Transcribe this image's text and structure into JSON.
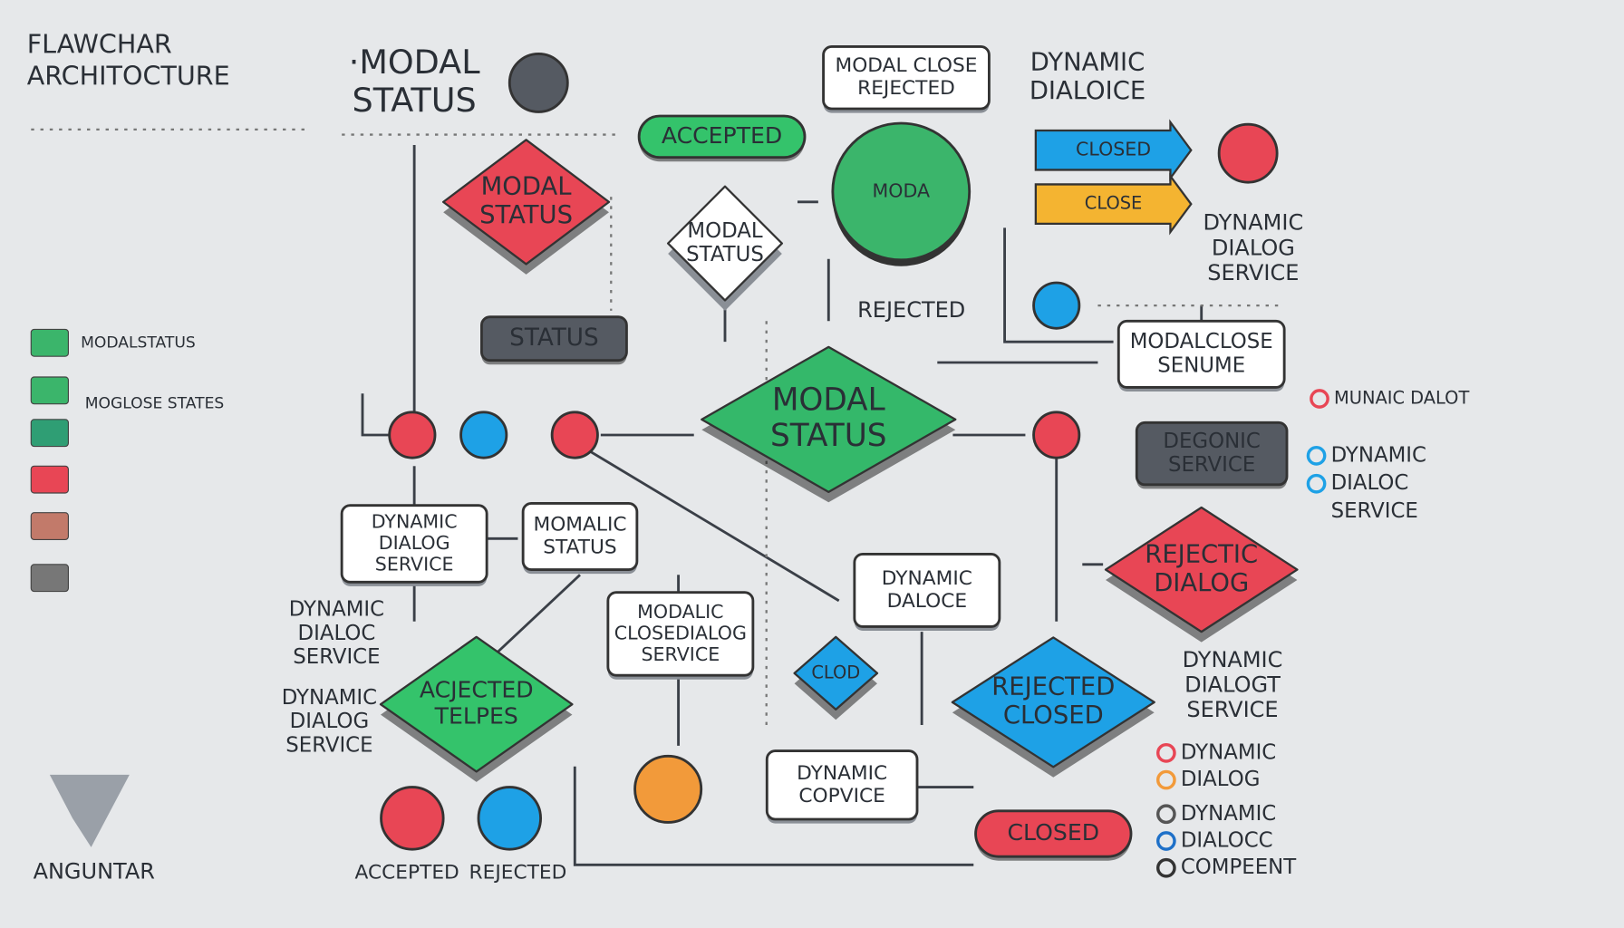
{
  "header": {
    "title": [
      "FLAWCHAR",
      "ARCHITOCTURE"
    ]
  },
  "legend_left": [
    "MODALSTATUS",
    "MOGLOSE STATES"
  ],
  "nodes": [
    {
      "lines": [
        "·MODAL",
        "STATUS"
      ]
    },
    {
      "lines": [
        "MODAL CLOSE",
        "REJECTED"
      ]
    },
    {
      "lines": [
        "DYNAMIC",
        "DIALOICE"
      ]
    },
    {
      "lines": [
        "ACCEPTED"
      ]
    },
    {
      "lines": [
        "MODAL",
        "STATUS"
      ]
    },
    {
      "lines": [
        "MODAL",
        "STATUS"
      ]
    },
    {
      "lines": [
        "MODA"
      ]
    },
    {
      "lines": [
        "CLOSED"
      ]
    },
    {
      "lines": [
        "CLOSE"
      ]
    },
    {
      "lines": [
        "DYNAMIC",
        "DIALOG",
        "SERVICE"
      ]
    },
    {
      "lines": [
        "STATUS"
      ]
    },
    {
      "lines": [
        "REJECTED"
      ]
    },
    {
      "lines": [
        "MODALCLOSE",
        "SENUME"
      ]
    },
    {
      "lines": [
        "MODAL",
        "STATUS"
      ]
    },
    {
      "lines": [
        "DEGONIC",
        "SERVICE"
      ]
    },
    {
      "lines": [
        "DYNAMIC",
        "DIALOG",
        "SERVICE"
      ]
    },
    {
      "lines": [
        "MOMALIC",
        "STATUS"
      ]
    },
    {
      "lines": [
        "DYNAMIC",
        "DALOCE"
      ]
    },
    {
      "lines": [
        "REJECTIC",
        "DIALOG"
      ]
    },
    {
      "lines": [
        "DYNAMIC",
        "DIALOC",
        "SERVICE"
      ]
    },
    {
      "lines": [
        "MODALIC",
        "CLOSEDIALOG",
        "SERVICE"
      ]
    },
    {
      "lines": [
        "ACJECTED",
        "TELPES"
      ]
    },
    {
      "lines": [
        "CLOD"
      ]
    },
    {
      "lines": [
        "REJECTED",
        "CLOSED"
      ]
    },
    {
      "lines": [
        "DYNAMIC",
        "DIALOGT",
        "SERVICE"
      ]
    },
    {
      "lines": [
        "DYNAMIC",
        "DIALOG",
        "SERVICE"
      ]
    },
    {
      "lines": [
        "DYNAMIC",
        "COPVICE"
      ]
    },
    {
      "lines": [
        "CLOSED"
      ]
    },
    {
      "lines": [
        "ACCEPTED"
      ]
    },
    {
      "lines": [
        "REJECTED"
      ]
    }
  ],
  "legend_right": [
    "MUNAIC DALOT",
    "DYNAMIC",
    "DIALOC",
    "SERVICE",
    "DYNAMIC",
    "DIALOG",
    "DYNAMIC",
    "DIALOCC",
    "COMPEENT"
  ],
  "footer": "ANGUNTAR"
}
